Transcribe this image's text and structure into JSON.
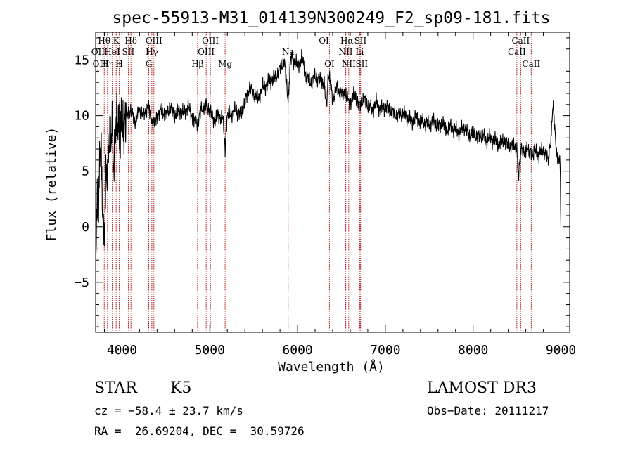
{
  "chart_data": {
    "type": "line",
    "title": "spec-55913-M31_014139N300249_F2_sp09-181.fits",
    "xlabel": "Wavelength (Å)",
    "ylabel": "Flux (relative)",
    "xlim": [
      3700,
      9100
    ],
    "ylim": [
      -9.5,
      17.5
    ],
    "xticks": [
      4000,
      5000,
      6000,
      7000,
      8000,
      9000
    ],
    "yticks": [
      -5,
      0,
      5,
      10,
      15
    ],
    "grid": false,
    "line_color": "#000000",
    "marker_color": "#b22222",
    "spectrum": {
      "x": [
        3700,
        3730,
        3760,
        3790,
        3820,
        3850,
        3880,
        3910,
        3940,
        3970,
        4000,
        4050,
        4100,
        4150,
        4200,
        4250,
        4300,
        4340,
        4400,
        4450,
        4500,
        4550,
        4600,
        4650,
        4700,
        4750,
        4800,
        4861,
        4900,
        4950,
        5000,
        5050,
        5100,
        5150,
        5175,
        5200,
        5250,
        5300,
        5350,
        5400,
        5450,
        5500,
        5550,
        5600,
        5650,
        5700,
        5750,
        5800,
        5850,
        5893,
        5920,
        5950,
        6000,
        6050,
        6100,
        6150,
        6200,
        6250,
        6300,
        6330,
        6350,
        6400,
        6450,
        6500,
        6563,
        6600,
        6650,
        6700,
        6750,
        6800,
        6850,
        6900,
        6950,
        7000,
        7050,
        7100,
        7150,
        7200,
        7250,
        7300,
        7350,
        7400,
        7450,
        7500,
        7550,
        7600,
        7650,
        7700,
        7750,
        7800,
        7850,
        7900,
        7950,
        8000,
        8050,
        8100,
        8150,
        8200,
        8250,
        8300,
        8350,
        8400,
        8450,
        8498,
        8520,
        8542,
        8580,
        8620,
        8662,
        8700,
        8750,
        8800,
        8850,
        8880,
        8910,
        8950,
        8990,
        9000
      ],
      "y": [
        -1,
        2,
        8,
        -2,
        4,
        7,
        9,
        6,
        10,
        8,
        9,
        10,
        10.5,
        9.5,
        10.5,
        10,
        11,
        9.5,
        10,
        10.5,
        10,
        10.8,
        10,
        10.5,
        10.2,
        10.8,
        10,
        9,
        10.5,
        11,
        10.5,
        9.5,
        10,
        9.8,
        7,
        10,
        10.2,
        10.5,
        10,
        11.2,
        12.5,
        12,
        11.5,
        12.5,
        12.8,
        13.2,
        13.5,
        14.2,
        15,
        11,
        15.5,
        15,
        14.5,
        15.2,
        13.5,
        13,
        13.5,
        13.2,
        13,
        11,
        14,
        11.5,
        12.5,
        12,
        11.5,
        11.3,
        12,
        10.8,
        11.5,
        11,
        10.5,
        11.2,
        10.5,
        10.8,
        10.5,
        10.2,
        10,
        10.3,
        9.8,
        9.5,
        9.8,
        9.5,
        9.4,
        9.2,
        9.5,
        9,
        9.3,
        8.8,
        9,
        8.7,
        8.5,
        9,
        8.2,
        8.6,
        8,
        8.3,
        7.8,
        8,
        7.7,
        7.5,
        7.8,
        7.3,
        7.2,
        6.8,
        4.5,
        7,
        6.8,
        7.2,
        6.5,
        6.8,
        6.5,
        7,
        6,
        7.2,
        11,
        6.5,
        6,
        0
      ]
    },
    "lines": [
      {
        "label": "Hθ",
        "x": 3798,
        "row": 1
      },
      {
        "label": "OII",
        "x": 3727,
        "row": 2
      },
      {
        "label": "OIII",
        "x": 3760,
        "row": 3
      },
      {
        "label": "K",
        "x": 3934,
        "row": 1
      },
      {
        "label": "HeI",
        "x": 3889,
        "row": 2
      },
      {
        "label": "Hη",
        "x": 3835,
        "row": 3
      },
      {
        "label": "H",
        "x": 3969,
        "row": 3
      },
      {
        "label": "SII",
        "x": 4072,
        "row": 2
      },
      {
        "label": "Hδ",
        "x": 4102,
        "row": 1
      },
      {
        "label": "OIII",
        "x": 4363,
        "row": 1
      },
      {
        "label": "Hγ",
        "x": 4340,
        "row": 2
      },
      {
        "label": "G",
        "x": 4305,
        "row": 3
      },
      {
        "label": "Hβ",
        "x": 4861,
        "row": 3
      },
      {
        "label": "OIII",
        "x": 5007,
        "row": 1
      },
      {
        "label": "OIII",
        "x": 4959,
        "row": 2
      },
      {
        "label": "Mg",
        "x": 5175,
        "row": 3
      },
      {
        "label": "Na",
        "x": 5893,
        "row": 2
      },
      {
        "label": "OI",
        "x": 6300,
        "row": 1
      },
      {
        "label": "OI",
        "x": 6363,
        "row": 3
      },
      {
        "label": "Hα",
        "x": 6563,
        "row": 1
      },
      {
        "label": "NII",
        "x": 6548,
        "row": 2
      },
      {
        "label": "NII",
        "x": 6583,
        "row": 3
      },
      {
        "label": "SII",
        "x": 6716,
        "row": 1
      },
      {
        "label": "Li",
        "x": 6708,
        "row": 2
      },
      {
        "label": "SII",
        "x": 6731,
        "row": 3
      },
      {
        "label": "CaII",
        "x": 8542,
        "row": 1
      },
      {
        "label": "CaII",
        "x": 8498,
        "row": 2
      },
      {
        "label": "CaII",
        "x": 8662,
        "row": 3
      }
    ]
  },
  "info": {
    "class_label": "STAR",
    "subclass": "K5",
    "survey": "LAMOST DR3",
    "cz": "cz = −58.4 ± 23.7 km/s",
    "obs_date": "Obs−Date: 20111217",
    "coords": "RA =  26.69204, DEC =  30.59726"
  }
}
